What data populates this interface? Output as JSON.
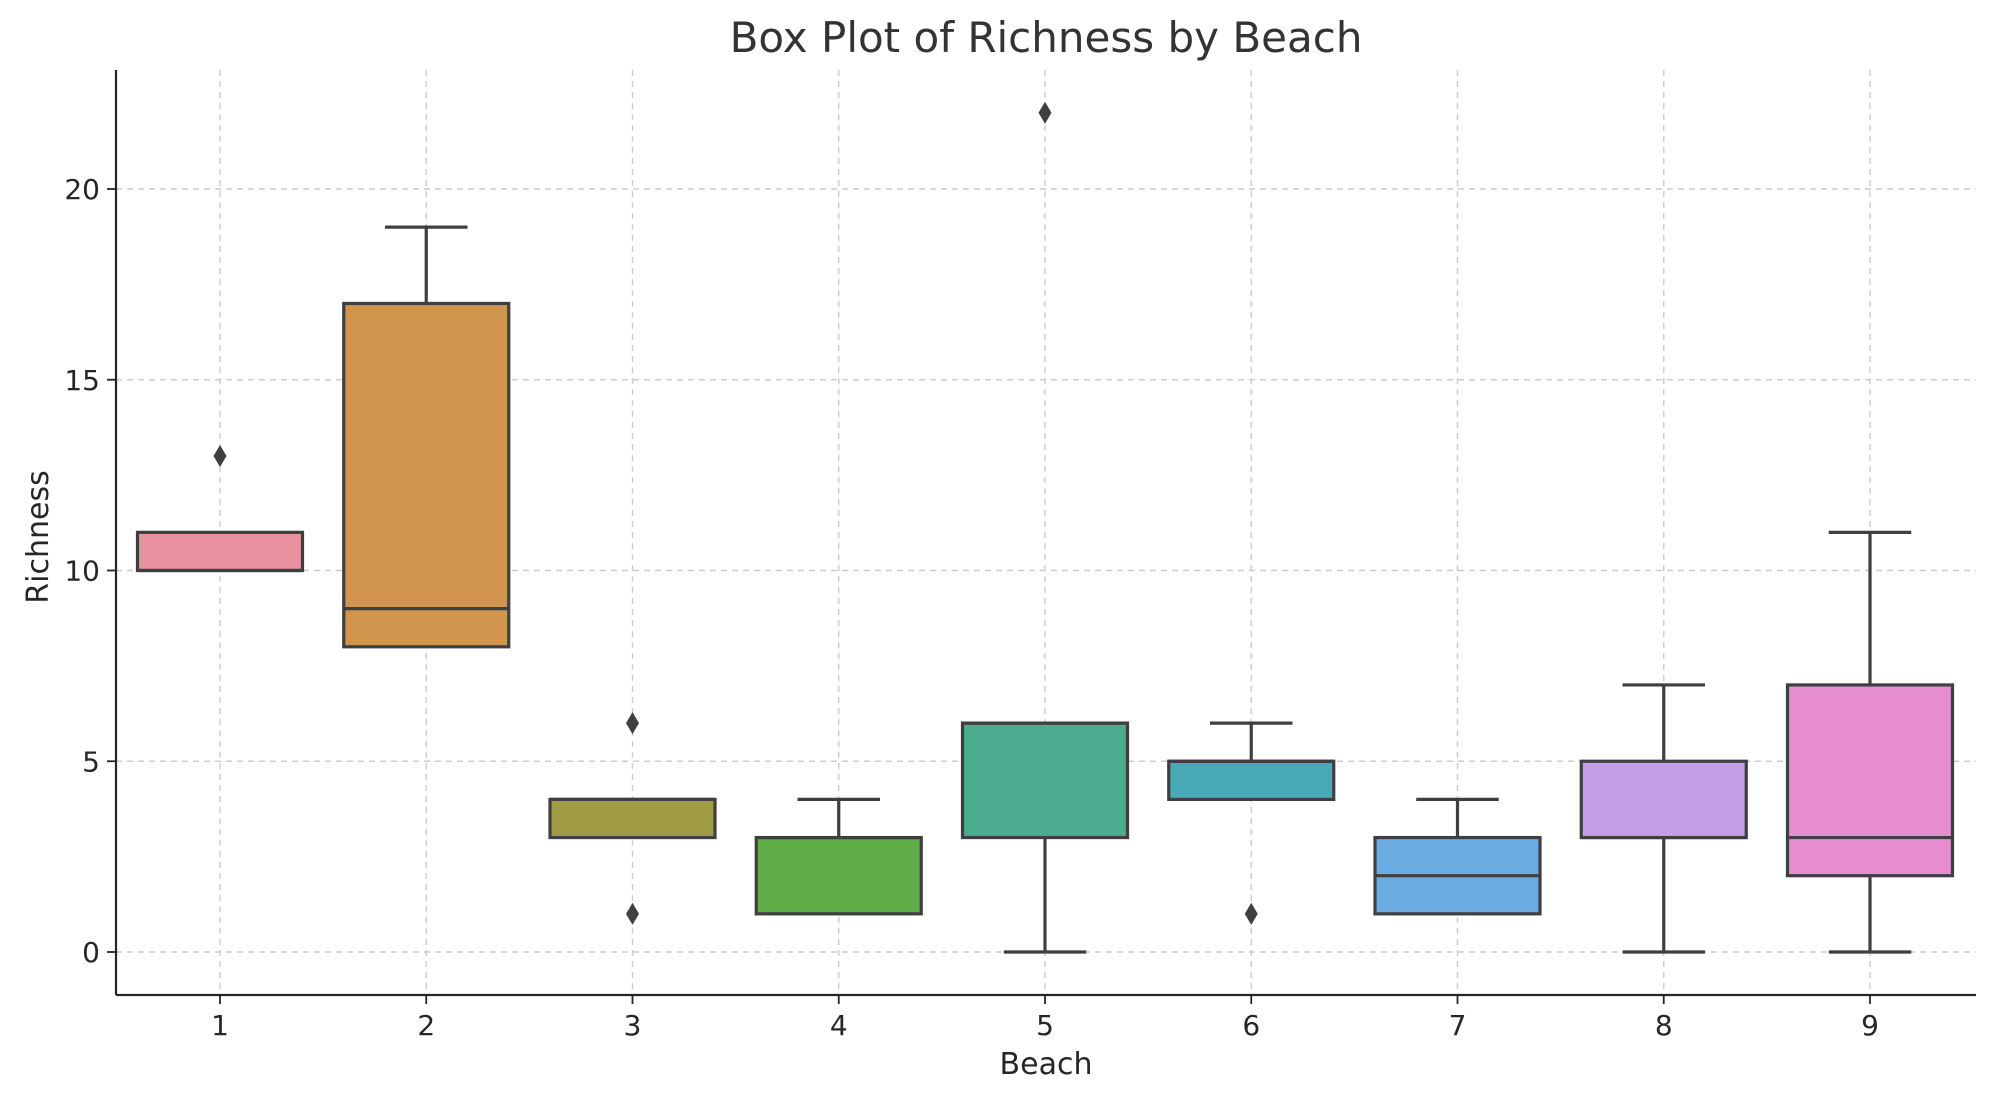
{
  "chart_data": {
    "type": "box",
    "title": "Box Plot of Richness by Beach",
    "xlabel": "Beach",
    "ylabel": "Richness",
    "ylim": [
      -1.1,
      23.1
    ],
    "yticks": [
      0,
      5,
      10,
      15,
      20
    ],
    "grid": true,
    "categories": [
      "1",
      "2",
      "3",
      "4",
      "5",
      "6",
      "7",
      "8",
      "9"
    ],
    "boxes": [
      {
        "category": "1",
        "whisker_low": 10,
        "q1": 10,
        "median": 10,
        "q3": 11,
        "whisker_high": 11,
        "outliers": [
          13
        ],
        "color": "#E8919E"
      },
      {
        "category": "2",
        "whisker_low": 8,
        "q1": 8,
        "median": 9,
        "q3": 17,
        "whisker_high": 19,
        "outliers": [],
        "color": "#D0944D"
      },
      {
        "category": "3",
        "whisker_low": 3,
        "q1": 3,
        "median": 4,
        "q3": 4,
        "whisker_high": 4,
        "outliers": [
          1,
          6
        ],
        "color": "#A09C46"
      },
      {
        "category": "4",
        "whisker_low": 1,
        "q1": 1,
        "median": 3,
        "q3": 3,
        "whisker_high": 4,
        "outliers": [],
        "color": "#60AC46"
      },
      {
        "category": "5",
        "whisker_low": 0,
        "q1": 3,
        "median": 6,
        "q3": 6,
        "whisker_high": 6,
        "outliers": [
          22
        ],
        "color": "#4BAC8F"
      },
      {
        "category": "6",
        "whisker_low": 4,
        "q1": 4,
        "median": 5,
        "q3": 5,
        "whisker_high": 6,
        "outliers": [
          1
        ],
        "color": "#4AA9B6"
      },
      {
        "category": "7",
        "whisker_low": 1,
        "q1": 1,
        "median": 2,
        "q3": 3,
        "whisker_high": 4,
        "outliers": [],
        "color": "#6AACE2"
      },
      {
        "category": "8",
        "whisker_low": 0,
        "q1": 3,
        "median": 3,
        "q3": 5,
        "whisker_high": 7,
        "outliers": [],
        "color": "#C39EE8"
      },
      {
        "category": "9",
        "whisker_low": 0,
        "q1": 2,
        "median": 3,
        "q3": 7,
        "whisker_high": 11,
        "outliers": [],
        "color": "#E68DCF"
      }
    ]
  }
}
